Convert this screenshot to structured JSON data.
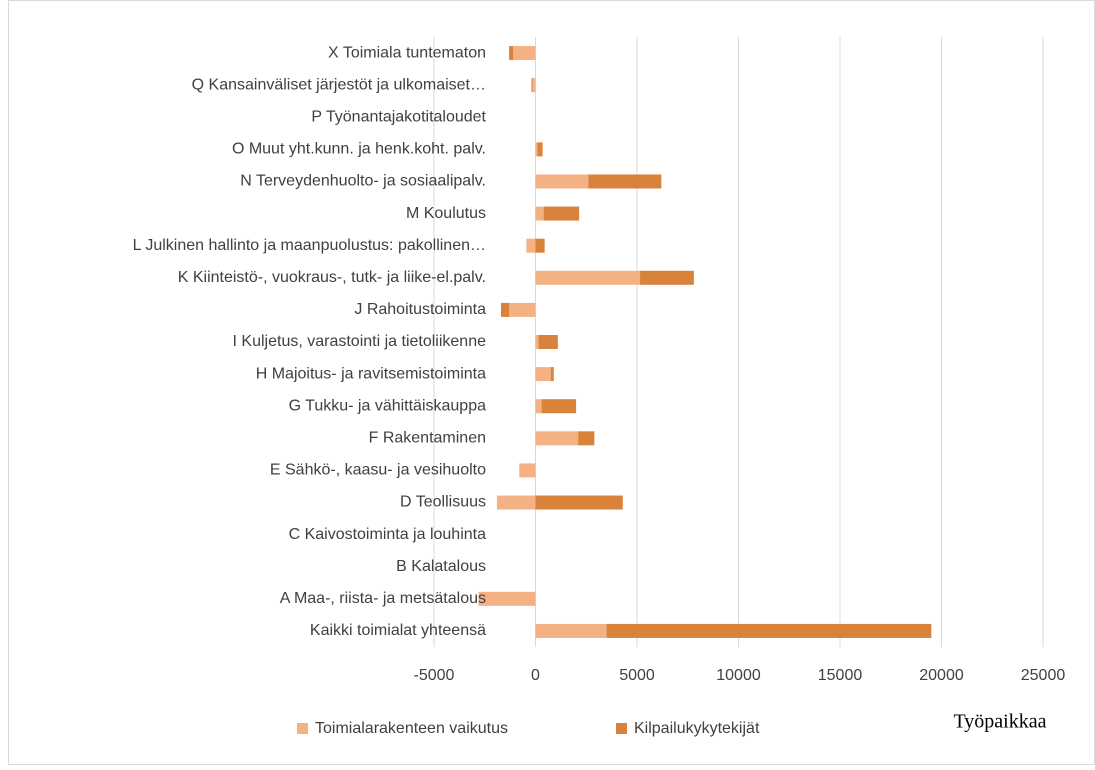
{
  "chart_data": {
    "type": "stacked-barh",
    "x_label": "Työpaikkaa",
    "categories": [
      "X Toimiala tuntematon",
      "Q Kansainväliset järjestöt ja ulkomaiset…",
      "P Työnantajakotitaloudet",
      "O Muut yht.kunn. ja henk.koht. palv.",
      "N Terveydenhuolto- ja sosiaalipalv.",
      "M Koulutus",
      "L Julkinen hallinto ja maanpuolustus: pakollinen…",
      "K Kiinteistö-, vuokraus-, tutk- ja liike-el.palv.",
      "J Rahoitustoiminta",
      "I Kuljetus, varastointi ja tietoliikenne",
      "H Majoitus- ja ravitsemistoiminta",
      "G Tukku- ja vähittäiskauppa",
      "F Rakentaminen",
      "E Sähkö-, kaasu- ja vesihuolto",
      "D Teollisuus",
      "C Kaivostoiminta ja louhinta",
      "B Kalatalous",
      "A Maa-, riista- ja metsätalous",
      "Kaikki toimialat yhteensä"
    ],
    "series": [
      {
        "name": "Toimialarakenteen vaikutus",
        "color": "#f4b183",
        "values": [
          -1100,
          -150,
          0,
          100,
          2600,
          400,
          -450,
          5150,
          -1300,
          150,
          750,
          300,
          2100,
          -800,
          -1900,
          0,
          0,
          -2800,
          3500
        ]
      },
      {
        "name": "Kilpailukykytekijät",
        "color": "#d9823b",
        "values": [
          -200,
          -50,
          0,
          250,
          3600,
          1750,
          450,
          2650,
          -400,
          950,
          150,
          1700,
          800,
          0,
          4300,
          0,
          0,
          0,
          16000
        ]
      }
    ],
    "xlim": [
      -5000,
      25000
    ],
    "xticks": [
      -5000,
      0,
      5000,
      10000,
      15000,
      20000,
      25000
    ],
    "grid": true,
    "legend": "bottom"
  }
}
